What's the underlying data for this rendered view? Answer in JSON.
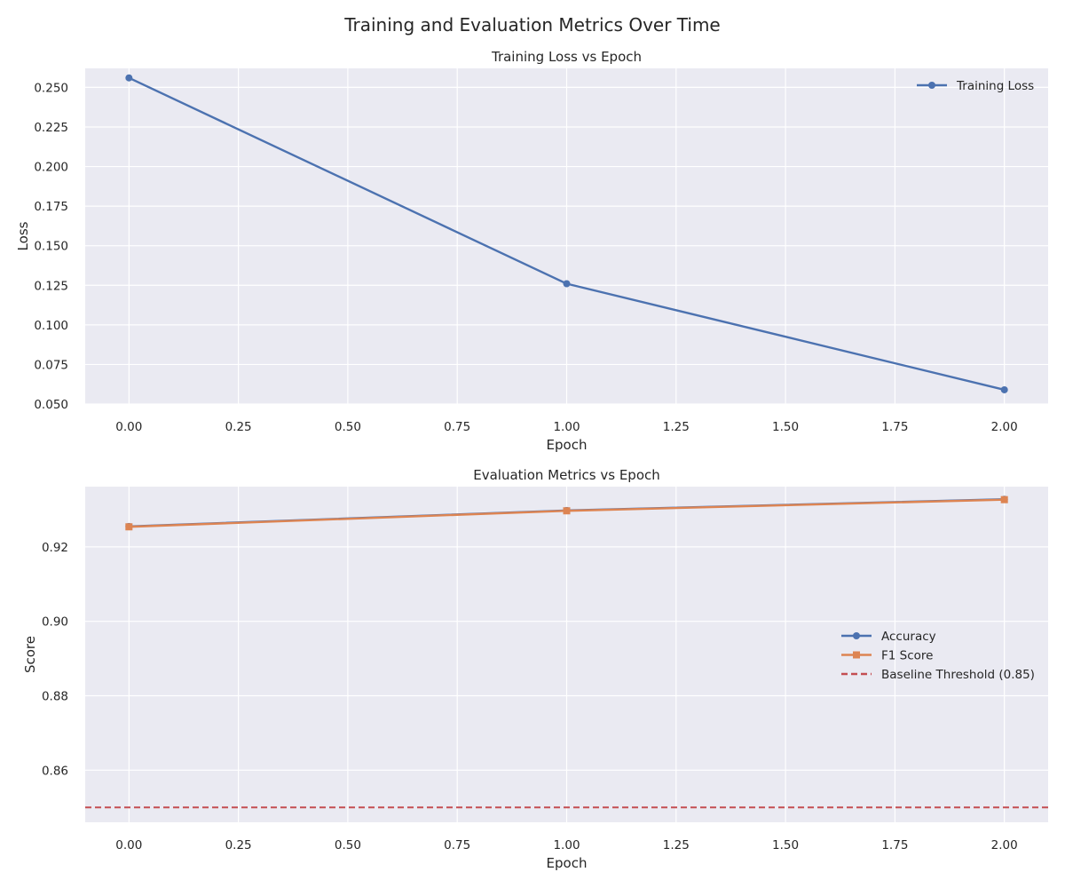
{
  "figure": {
    "title": "Training and Evaluation Metrics Over Time"
  },
  "chart_data": [
    {
      "type": "line",
      "title": "Training Loss vs Epoch",
      "xlabel": "Epoch",
      "ylabel": "Loss",
      "xlim": [
        -0.1,
        2.1
      ],
      "ylim": [
        0.05,
        0.262
      ],
      "xticks": [
        0.0,
        0.25,
        0.5,
        0.75,
        1.0,
        1.25,
        1.5,
        1.75,
        2.0
      ],
      "xtick_labels": [
        "0.00",
        "0.25",
        "0.50",
        "0.75",
        "1.00",
        "1.25",
        "1.50",
        "1.75",
        "2.00"
      ],
      "yticks": [
        0.05,
        0.075,
        0.1,
        0.125,
        0.15,
        0.175,
        0.2,
        0.225,
        0.25
      ],
      "ytick_labels": [
        "0.050",
        "0.075",
        "0.100",
        "0.125",
        "0.150",
        "0.175",
        "0.200",
        "0.225",
        "0.250"
      ],
      "grid": true,
      "legend_position": "top-right",
      "series": [
        {
          "name": "Training Loss",
          "x": [
            0,
            1,
            2
          ],
          "y": [
            0.256,
            0.126,
            0.059
          ],
          "color": "#4c72b0",
          "marker": "circle",
          "style": "solid"
        }
      ]
    },
    {
      "type": "line",
      "title": "Evaluation Metrics vs Epoch",
      "xlabel": "Epoch",
      "ylabel": "Score",
      "xlim": [
        -0.1,
        2.1
      ],
      "ylim": [
        0.846,
        0.9362
      ],
      "xticks": [
        0.0,
        0.25,
        0.5,
        0.75,
        1.0,
        1.25,
        1.5,
        1.75,
        2.0
      ],
      "xtick_labels": [
        "0.00",
        "0.25",
        "0.50",
        "0.75",
        "1.00",
        "1.25",
        "1.50",
        "1.75",
        "2.00"
      ],
      "yticks": [
        0.86,
        0.88,
        0.9,
        0.92
      ],
      "ytick_labels": [
        "0.86",
        "0.88",
        "0.90",
        "0.92"
      ],
      "grid": true,
      "legend_position": "center-right",
      "series": [
        {
          "name": "Accuracy",
          "x": [
            0,
            1,
            2
          ],
          "y": [
            0.9255,
            0.9298,
            0.9328
          ],
          "color": "#4c72b0",
          "marker": "circle",
          "style": "solid"
        },
        {
          "name": "F1 Score",
          "x": [
            0,
            1,
            2
          ],
          "y": [
            0.9254,
            0.9297,
            0.9327
          ],
          "color": "#dd8452",
          "marker": "square",
          "style": "solid"
        }
      ],
      "hlines": [
        {
          "name": "Baseline Threshold (0.85)",
          "y": 0.85,
          "color": "#c44e52",
          "style": "dashed"
        }
      ]
    }
  ]
}
